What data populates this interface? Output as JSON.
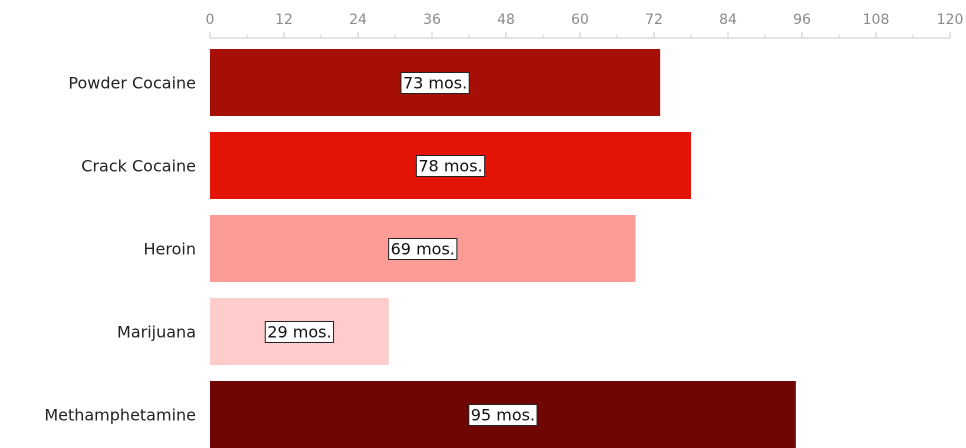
{
  "chart_data": {
    "type": "bar",
    "orientation": "horizontal",
    "categories": [
      "Powder Cocaine",
      "Crack Cocaine",
      "Heroin",
      "Marijuana",
      "Methamphetamine"
    ],
    "values": [
      73,
      78,
      69,
      29,
      95
    ],
    "data_labels": [
      "73 mos.",
      "78 mos.",
      "69 mos.",
      "29 mos.",
      "95 mos."
    ],
    "colors": [
      "#a60f05",
      "#e31405",
      "#fb9c96",
      "#fecccb",
      "#700604"
    ],
    "x_ticks": [
      "0",
      "12",
      "24",
      "36",
      "48",
      "60",
      "72",
      "84",
      "96",
      "108",
      "120"
    ],
    "xlim": [
      0,
      120
    ],
    "x_axis_position": "top",
    "grid": false,
    "legend": "none"
  }
}
